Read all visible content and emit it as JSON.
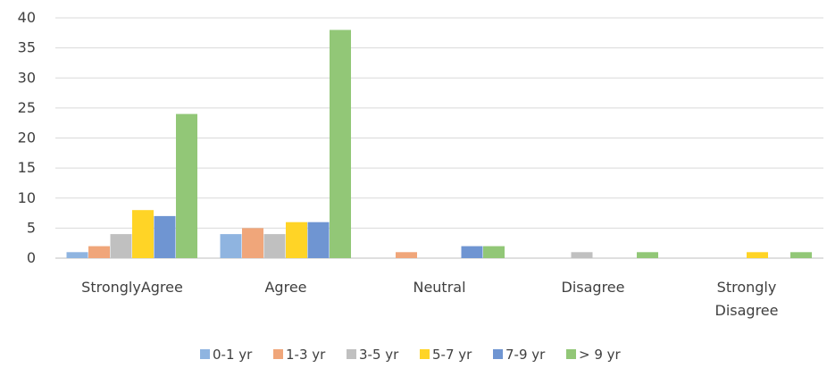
{
  "chart_data": {
    "type": "bar",
    "categories": [
      "Strongly Agree",
      "Agree",
      "Neutral",
      "Disagree",
      "Strongly Disagree"
    ],
    "category_display": [
      [
        "StronglyAgree"
      ],
      [
        "Agree"
      ],
      [
        "Neutral"
      ],
      [
        "Disagree"
      ],
      [
        "Strongly",
        "Disagree"
      ]
    ],
    "series": [
      {
        "name": "0-1 yr",
        "color": "#8fb4e0",
        "values": [
          1,
          4,
          0,
          0,
          0
        ]
      },
      {
        "name": "1-3 yr",
        "color": "#f0a67a",
        "values": [
          2,
          5,
          1,
          0,
          0
        ]
      },
      {
        "name": "3-5 yr",
        "color": "#c0c0c0",
        "values": [
          4,
          4,
          0,
          1,
          0
        ]
      },
      {
        "name": "5-7 yr",
        "color": "#ffd426",
        "values": [
          8,
          6,
          0,
          0,
          1
        ]
      },
      {
        "name": "7-9 yr",
        "color": "#6f95d2",
        "values": [
          7,
          6,
          2,
          0,
          0
        ]
      },
      {
        "name": "> 9 yr",
        "color": "#92c777",
        "values": [
          24,
          38,
          2,
          1,
          1
        ]
      }
    ],
    "ylim": [
      0,
      40
    ],
    "yticks": [
      0,
      5,
      10,
      15,
      20,
      25,
      30,
      35,
      40
    ],
    "grid": true,
    "legend": "bottom",
    "title": "",
    "xlabel": "",
    "ylabel": ""
  }
}
